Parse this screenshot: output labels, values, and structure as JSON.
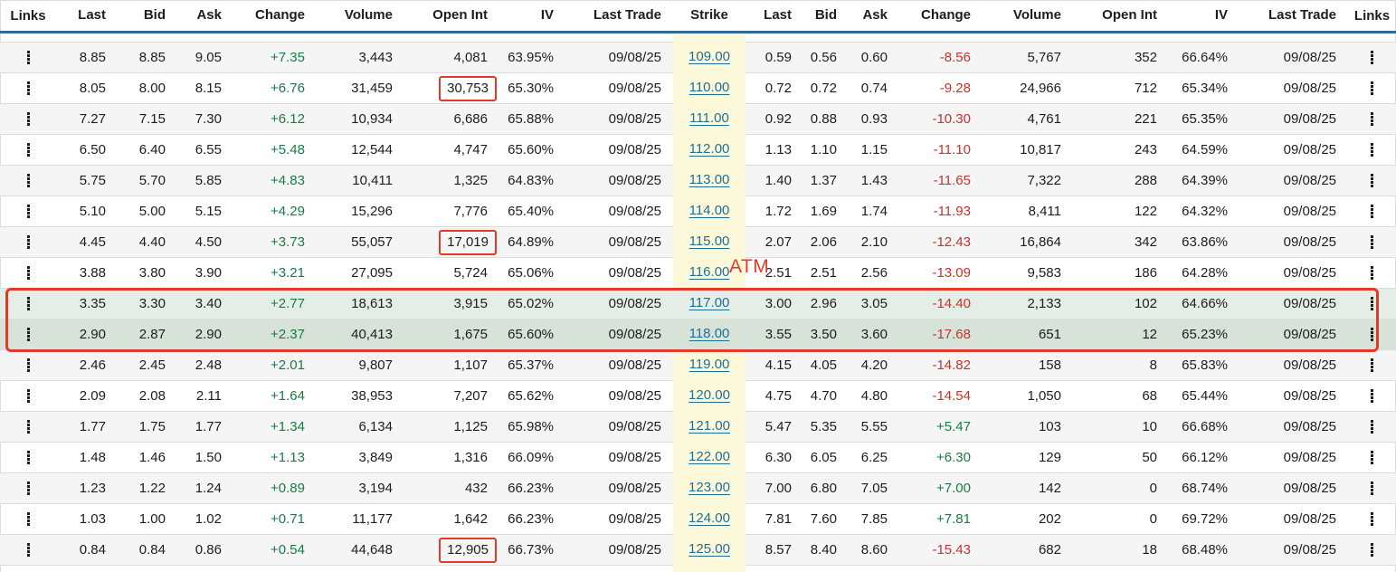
{
  "table": {
    "call_headers": [
      "Links",
      "Last",
      "Bid",
      "Ask",
      "Change",
      "Volume",
      "Open Int",
      "IV",
      "Last Trade"
    ],
    "strike_header": "Strike",
    "put_headers": [
      "Last",
      "Bid",
      "Ask",
      "Change",
      "Volume",
      "Open Int",
      "IV",
      "Last Trade",
      "Links"
    ],
    "rows": [
      {
        "strike": "109.00",
        "highlight": null,
        "call_open_int_boxed": false,
        "call": {
          "last": "8.85",
          "bid": "8.85",
          "ask": "9.05",
          "change": "+7.35",
          "volume": "3,443",
          "open_int": "4,081",
          "iv": "63.95%",
          "last_trade": "09/08/25"
        },
        "put": {
          "last": "0.59",
          "bid": "0.56",
          "ask": "0.60",
          "change": "-8.56",
          "volume": "5,767",
          "open_int": "352",
          "iv": "66.64%",
          "last_trade": "09/08/25"
        }
      },
      {
        "strike": "110.00",
        "highlight": null,
        "call_open_int_boxed": true,
        "call": {
          "last": "8.05",
          "bid": "8.00",
          "ask": "8.15",
          "change": "+6.76",
          "volume": "31,459",
          "open_int": "30,753",
          "iv": "65.30%",
          "last_trade": "09/08/25"
        },
        "put": {
          "last": "0.72",
          "bid": "0.72",
          "ask": "0.74",
          "change": "-9.28",
          "volume": "24,966",
          "open_int": "712",
          "iv": "65.34%",
          "last_trade": "09/08/25"
        }
      },
      {
        "strike": "111.00",
        "highlight": null,
        "call_open_int_boxed": false,
        "call": {
          "last": "7.27",
          "bid": "7.15",
          "ask": "7.30",
          "change": "+6.12",
          "volume": "10,934",
          "open_int": "6,686",
          "iv": "65.88%",
          "last_trade": "09/08/25"
        },
        "put": {
          "last": "0.92",
          "bid": "0.88",
          "ask": "0.93",
          "change": "-10.30",
          "volume": "4,761",
          "open_int": "221",
          "iv": "65.35%",
          "last_trade": "09/08/25"
        }
      },
      {
        "strike": "112.00",
        "highlight": null,
        "call_open_int_boxed": false,
        "call": {
          "last": "6.50",
          "bid": "6.40",
          "ask": "6.55",
          "change": "+5.48",
          "volume": "12,544",
          "open_int": "4,747",
          "iv": "65.60%",
          "last_trade": "09/08/25"
        },
        "put": {
          "last": "1.13",
          "bid": "1.10",
          "ask": "1.15",
          "change": "-11.10",
          "volume": "10,817",
          "open_int": "243",
          "iv": "64.59%",
          "last_trade": "09/08/25"
        }
      },
      {
        "strike": "113.00",
        "highlight": null,
        "call_open_int_boxed": false,
        "call": {
          "last": "5.75",
          "bid": "5.70",
          "ask": "5.85",
          "change": "+4.83",
          "volume": "10,411",
          "open_int": "1,325",
          "iv": "64.83%",
          "last_trade": "09/08/25"
        },
        "put": {
          "last": "1.40",
          "bid": "1.37",
          "ask": "1.43",
          "change": "-11.65",
          "volume": "7,322",
          "open_int": "288",
          "iv": "64.39%",
          "last_trade": "09/08/25"
        }
      },
      {
        "strike": "114.00",
        "highlight": null,
        "call_open_int_boxed": false,
        "call": {
          "last": "5.10",
          "bid": "5.00",
          "ask": "5.15",
          "change": "+4.29",
          "volume": "15,296",
          "open_int": "7,776",
          "iv": "65.40%",
          "last_trade": "09/08/25"
        },
        "put": {
          "last": "1.72",
          "bid": "1.69",
          "ask": "1.74",
          "change": "-11.93",
          "volume": "8,411",
          "open_int": "122",
          "iv": "64.32%",
          "last_trade": "09/08/25"
        }
      },
      {
        "strike": "115.00",
        "highlight": null,
        "call_open_int_boxed": true,
        "call": {
          "last": "4.45",
          "bid": "4.40",
          "ask": "4.50",
          "change": "+3.73",
          "volume": "55,057",
          "open_int": "17,019",
          "iv": "64.89%",
          "last_trade": "09/08/25"
        },
        "put": {
          "last": "2.07",
          "bid": "2.06",
          "ask": "2.10",
          "change": "-12.43",
          "volume": "16,864",
          "open_int": "342",
          "iv": "63.86%",
          "last_trade": "09/08/25"
        }
      },
      {
        "strike": "116.00",
        "highlight": null,
        "call_open_int_boxed": false,
        "call": {
          "last": "3.88",
          "bid": "3.80",
          "ask": "3.90",
          "change": "+3.21",
          "volume": "27,095",
          "open_int": "5,724",
          "iv": "65.06%",
          "last_trade": "09/08/25"
        },
        "put": {
          "last": "2.51",
          "bid": "2.51",
          "ask": "2.56",
          "change": "-13.09",
          "volume": "9,583",
          "open_int": "186",
          "iv": "64.28%",
          "last_trade": "09/08/25"
        }
      },
      {
        "strike": "117.00",
        "highlight": "light",
        "call_open_int_boxed": false,
        "call": {
          "last": "3.35",
          "bid": "3.30",
          "ask": "3.40",
          "change": "+2.77",
          "volume": "18,613",
          "open_int": "3,915",
          "iv": "65.02%",
          "last_trade": "09/08/25"
        },
        "put": {
          "last": "3.00",
          "bid": "2.96",
          "ask": "3.05",
          "change": "-14.40",
          "volume": "2,133",
          "open_int": "102",
          "iv": "64.66%",
          "last_trade": "09/08/25"
        }
      },
      {
        "strike": "118.00",
        "highlight": "dark",
        "call_open_int_boxed": false,
        "call": {
          "last": "2.90",
          "bid": "2.87",
          "ask": "2.90",
          "change": "+2.37",
          "volume": "40,413",
          "open_int": "1,675",
          "iv": "65.60%",
          "last_trade": "09/08/25"
        },
        "put": {
          "last": "3.55",
          "bid": "3.50",
          "ask": "3.60",
          "change": "-17.68",
          "volume": "651",
          "open_int": "12",
          "iv": "65.23%",
          "last_trade": "09/08/25"
        }
      },
      {
        "strike": "119.00",
        "highlight": null,
        "call_open_int_boxed": false,
        "call": {
          "last": "2.46",
          "bid": "2.45",
          "ask": "2.48",
          "change": "+2.01",
          "volume": "9,807",
          "open_int": "1,107",
          "iv": "65.37%",
          "last_trade": "09/08/25"
        },
        "put": {
          "last": "4.15",
          "bid": "4.05",
          "ask": "4.20",
          "change": "-14.82",
          "volume": "158",
          "open_int": "8",
          "iv": "65.83%",
          "last_trade": "09/08/25"
        }
      },
      {
        "strike": "120.00",
        "highlight": null,
        "call_open_int_boxed": false,
        "call": {
          "last": "2.09",
          "bid": "2.08",
          "ask": "2.11",
          "change": "+1.64",
          "volume": "38,953",
          "open_int": "7,207",
          "iv": "65.62%",
          "last_trade": "09/08/25"
        },
        "put": {
          "last": "4.75",
          "bid": "4.70",
          "ask": "4.80",
          "change": "-14.54",
          "volume": "1,050",
          "open_int": "68",
          "iv": "65.44%",
          "last_trade": "09/08/25"
        }
      },
      {
        "strike": "121.00",
        "highlight": null,
        "call_open_int_boxed": false,
        "call": {
          "last": "1.77",
          "bid": "1.75",
          "ask": "1.77",
          "change": "+1.34",
          "volume": "6,134",
          "open_int": "1,125",
          "iv": "65.98%",
          "last_trade": "09/08/25"
        },
        "put": {
          "last": "5.47",
          "bid": "5.35",
          "ask": "5.55",
          "change": "+5.47",
          "volume": "103",
          "open_int": "10",
          "iv": "66.68%",
          "last_trade": "09/08/25"
        }
      },
      {
        "strike": "122.00",
        "highlight": null,
        "call_open_int_boxed": false,
        "call": {
          "last": "1.48",
          "bid": "1.46",
          "ask": "1.50",
          "change": "+1.13",
          "volume": "3,849",
          "open_int": "1,316",
          "iv": "66.09%",
          "last_trade": "09/08/25"
        },
        "put": {
          "last": "6.30",
          "bid": "6.05",
          "ask": "6.25",
          "change": "+6.30",
          "volume": "129",
          "open_int": "50",
          "iv": "66.12%",
          "last_trade": "09/08/25"
        }
      },
      {
        "strike": "123.00",
        "highlight": null,
        "call_open_int_boxed": false,
        "call": {
          "last": "1.23",
          "bid": "1.22",
          "ask": "1.24",
          "change": "+0.89",
          "volume": "3,194",
          "open_int": "432",
          "iv": "66.23%",
          "last_trade": "09/08/25"
        },
        "put": {
          "last": "7.00",
          "bid": "6.80",
          "ask": "7.05",
          "change": "+7.00",
          "volume": "142",
          "open_int": "0",
          "iv": "68.74%",
          "last_trade": "09/08/25"
        }
      },
      {
        "strike": "124.00",
        "highlight": null,
        "call_open_int_boxed": false,
        "call": {
          "last": "1.03",
          "bid": "1.00",
          "ask": "1.02",
          "change": "+0.71",
          "volume": "11,177",
          "open_int": "1,642",
          "iv": "66.23%",
          "last_trade": "09/08/25"
        },
        "put": {
          "last": "7.81",
          "bid": "7.60",
          "ask": "7.85",
          "change": "+7.81",
          "volume": "202",
          "open_int": "0",
          "iv": "69.72%",
          "last_trade": "09/08/25"
        }
      },
      {
        "strike": "125.00",
        "highlight": null,
        "call_open_int_boxed": true,
        "call": {
          "last": "0.84",
          "bid": "0.84",
          "ask": "0.86",
          "change": "+0.54",
          "volume": "44,648",
          "open_int": "12,905",
          "iv": "66.73%",
          "last_trade": "09/08/25"
        },
        "put": {
          "last": "8.57",
          "bid": "8.40",
          "ask": "8.60",
          "change": "-15.43",
          "volume": "682",
          "open_int": "18",
          "iv": "68.48%",
          "last_trade": "09/08/25"
        }
      }
    ]
  },
  "annotations": {
    "atm_label": "ATM",
    "atm_strike": "116.00",
    "highlighted_strikes": [
      "117.00",
      "118.00"
    ],
    "boxed_call_open_int_values": [
      "30,753",
      "17,019",
      "12,905"
    ],
    "annotation_color": "#e23a28"
  },
  "icons": {
    "links_menu": "kebab-vertical-dots-icon"
  },
  "colors": {
    "header_underline": "#2c6c9c",
    "positive_change": "#1a7b44",
    "negative_change": "#c5332d",
    "strike_link": "#1e6f96",
    "strike_column_bg": "#fcf9db",
    "alt_row_bg": "#f5f5f5",
    "highlight_row_light": "#e4ede6",
    "highlight_row_dark": "#d7e2d9"
  }
}
